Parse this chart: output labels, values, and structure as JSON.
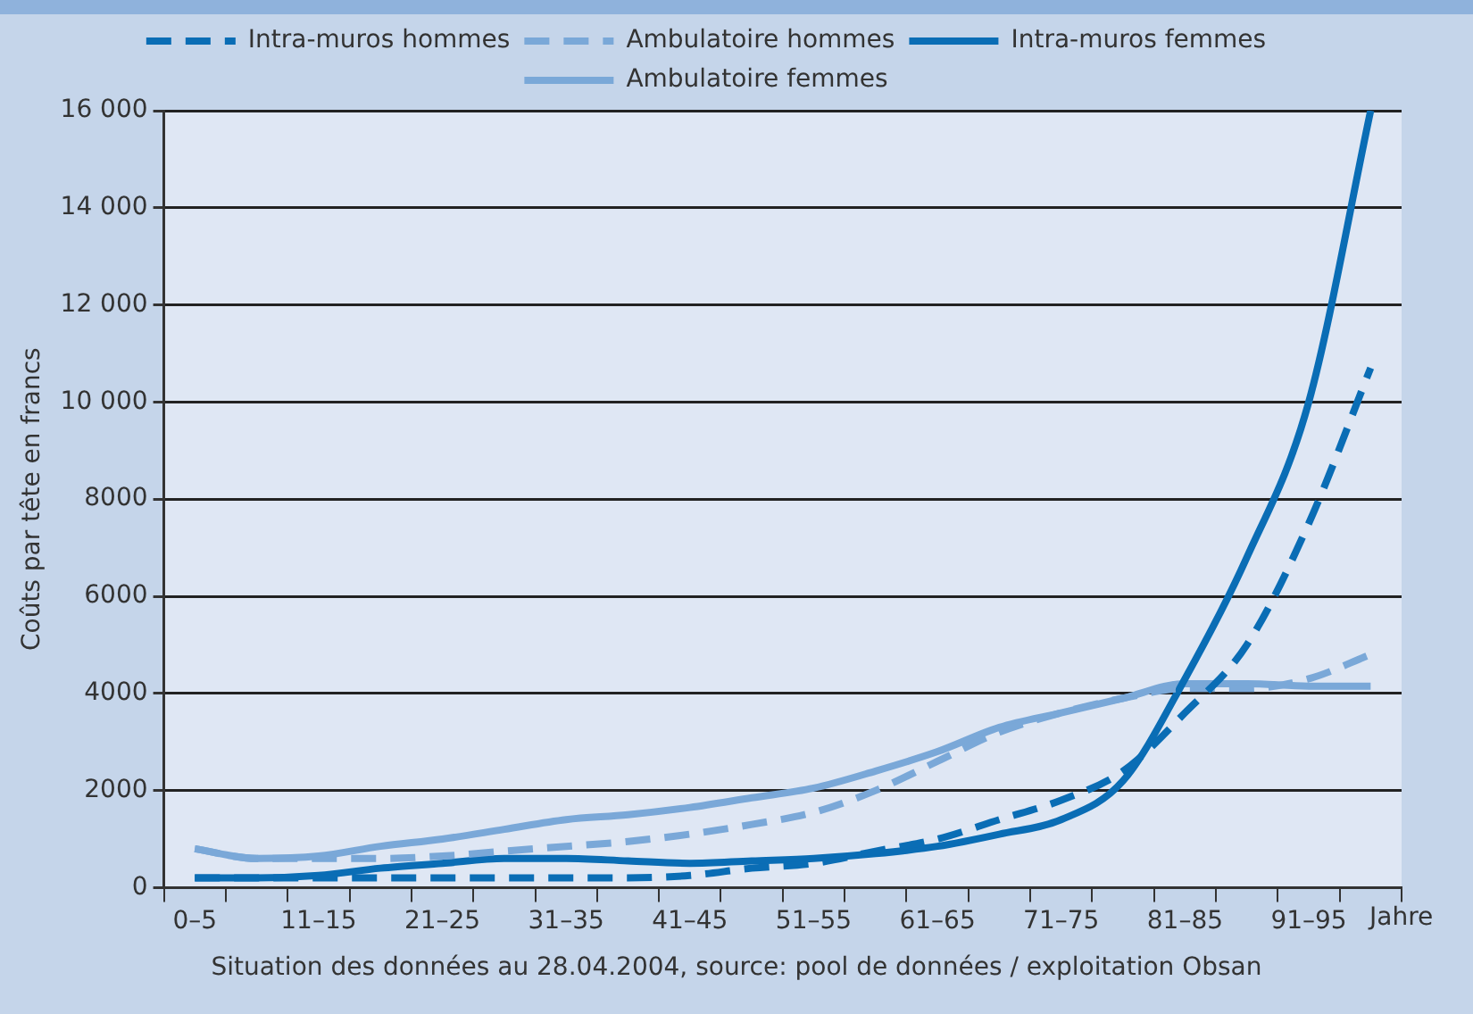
{
  "chart_data": {
    "type": "line",
    "ylabel": "Coûts par tête en francs",
    "xlabel": "Jahre",
    "categories": [
      "0–5",
      null,
      "11–15",
      null,
      "21–25",
      null,
      "31–35",
      null,
      "41–45",
      null,
      "51–55",
      null,
      "61–65",
      null,
      "71–75",
      null,
      "81–85",
      null,
      "91–95",
      null
    ],
    "series": [
      {
        "name": "Intra-muros hommes",
        "color": "#0a6db5",
        "line_style": "dashed",
        "values": [
          200,
          200,
          200,
          200,
          200,
          200,
          200,
          200,
          250,
          400,
          500,
          750,
          1000,
          1400,
          1800,
          2400,
          3600,
          5000,
          7500,
          10700
        ]
      },
      {
        "name": "Ambulatoire hommes",
        "color": "#7aa8d8",
        "line_style": "dashed",
        "values": [
          800,
          600,
          600,
          600,
          650,
          750,
          850,
          950,
          1100,
          1300,
          1550,
          2000,
          2600,
          3200,
          3600,
          3900,
          4100,
          4100,
          4300,
          4800
        ]
      },
      {
        "name": "Intra-muros femmes",
        "color": "#0a6db5",
        "line_style": "solid",
        "values": [
          200,
          200,
          250,
          400,
          500,
          600,
          600,
          550,
          500,
          550,
          600,
          700,
          850,
          1100,
          1400,
          2200,
          4300,
          6800,
          10000,
          16000
        ]
      },
      {
        "name": "Ambulatoire femmes",
        "color": "#7aa8d8",
        "line_style": "solid",
        "values": [
          800,
          600,
          650,
          850,
          1000,
          1200,
          1400,
          1500,
          1650,
          1850,
          2050,
          2400,
          2800,
          3300,
          3600,
          3900,
          4200,
          4200,
          4150,
          4150
        ]
      }
    ],
    "ylim": [
      0,
      16000
    ],
    "yticks": [
      0,
      {
        "value": 2000,
        "label": "2000"
      },
      {
        "value": 4000,
        "label": "4000"
      },
      {
        "value": 6000,
        "label": "6000"
      },
      {
        "value": 8000,
        "label": "8000"
      },
      {
        "value": 10000,
        "label": "10 000"
      },
      {
        "value": 12000,
        "label": "12 000"
      },
      {
        "value": 14000,
        "label": "14 000"
      },
      {
        "value": 16000,
        "label": "16 000"
      }
    ],
    "grid": "y",
    "legend": "top",
    "marker": "none",
    "annotations": [
      "Situation des données au 28.04.2004, source: pool de données / exploitation Obsan"
    ]
  }
}
